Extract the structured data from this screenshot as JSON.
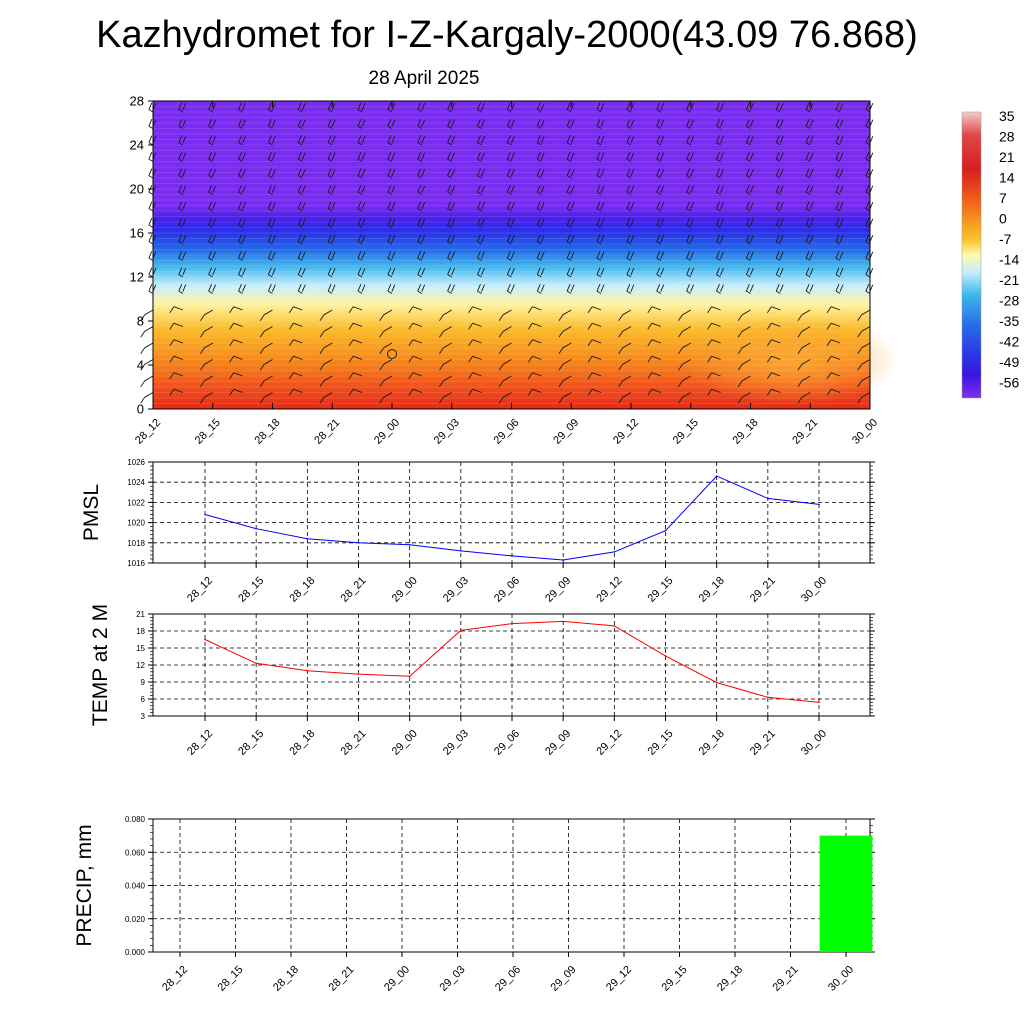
{
  "title": "Kazhydromet for I-Z-Kargaly-2000(43.09 76.868)",
  "subtitle": "28 April 2025",
  "time_labels": [
    "28_12",
    "28_15",
    "28_18",
    "28_21",
    "29_00",
    "29_03",
    "29_06",
    "29_09",
    "29_12",
    "29_15",
    "29_18",
    "29_21",
    "30_00"
  ],
  "chart_data": [
    {
      "type": "heatmap",
      "name": "vertical temperature cross-section with wind barbs",
      "x": [
        "28_12",
        "28_15",
        "28_18",
        "28_21",
        "29_00",
        "29_03",
        "29_06",
        "29_09",
        "29_12",
        "29_15",
        "29_18",
        "29_21",
        "30_00"
      ],
      "ylim": [
        0,
        28
      ],
      "yticks": [
        0,
        4,
        8,
        12,
        16,
        20,
        24,
        28
      ],
      "colorbar_labels": [
        "35",
        "28",
        "21",
        "14",
        "7",
        "0",
        "-7",
        "-14",
        "-21",
        "-28",
        "-35",
        "-42",
        "-49",
        "-56"
      ],
      "colorbar_colors": [
        "#f3c4c4",
        "#e34a4a",
        "#d91c1c",
        "#e8401c",
        "#f4801a",
        "#fbbd2a",
        "#fff9a8",
        "#c6ecff",
        "#3cb8ea",
        "#2870e6",
        "#2a3be8",
        "#3214e2",
        "#7b2cf0"
      ],
      "profile_approx": {
        "levels": [
          0,
          2,
          4,
          6,
          8,
          10,
          11,
          12,
          14,
          16,
          18,
          28
        ],
        "temps": [
          20,
          16,
          12,
          8,
          4,
          0,
          -4,
          -14,
          -30,
          -50,
          -58,
          -58
        ]
      }
    },
    {
      "type": "line",
      "ylabel": "PMSL",
      "x": [
        "28_12",
        "28_15",
        "28_18",
        "28_21",
        "29_00",
        "29_03",
        "29_06",
        "29_09",
        "29_12",
        "29_15",
        "29_18",
        "29_21",
        "30_00"
      ],
      "series": [
        {
          "color": "#0000ff",
          "values": [
            1020.8,
            1019.4,
            1018.4,
            1018.0,
            1017.8,
            1017.2,
            1016.7,
            1016.3,
            1017.1,
            1019.2,
            1024.6,
            1022.4,
            1021.8
          ]
        }
      ],
      "ylim": [
        1016,
        1026
      ],
      "yticks": [
        1016,
        1018,
        1020,
        1022,
        1024,
        1026
      ],
      "grid": true
    },
    {
      "type": "line",
      "ylabel": "TEMP at 2 M",
      "x": [
        "28_12",
        "28_15",
        "28_18",
        "28_21",
        "29_00",
        "29_03",
        "29_06",
        "29_09",
        "29_12",
        "29_15",
        "29_18",
        "29_21",
        "30_00"
      ],
      "series": [
        {
          "color": "#ff0000",
          "values": [
            16.5,
            12.3,
            11.0,
            10.4,
            10.0,
            18.1,
            19.3,
            19.7,
            18.9,
            13.6,
            8.9,
            6.3,
            5.4
          ]
        }
      ],
      "ylim": [
        3,
        21
      ],
      "yticks": [
        3,
        6,
        9,
        12,
        15,
        18,
        21
      ],
      "grid": true
    },
    {
      "type": "bar",
      "ylabel": "PRECIP, mm",
      "x": [
        "28_12",
        "28_15",
        "28_18",
        "28_21",
        "29_00",
        "29_03",
        "29_06",
        "29_09",
        "29_12",
        "29_15",
        "29_18",
        "29_21",
        "30_00"
      ],
      "values": [
        0,
        0,
        0,
        0,
        0,
        0,
        0,
        0,
        0,
        0,
        0,
        0,
        0.07
      ],
      "color": "#00ff00",
      "ylim": [
        0,
        0.08
      ],
      "ytick_labels": [
        "0.000",
        "0.020",
        "0.040",
        "0.060",
        "0.080"
      ],
      "grid": true
    }
  ]
}
